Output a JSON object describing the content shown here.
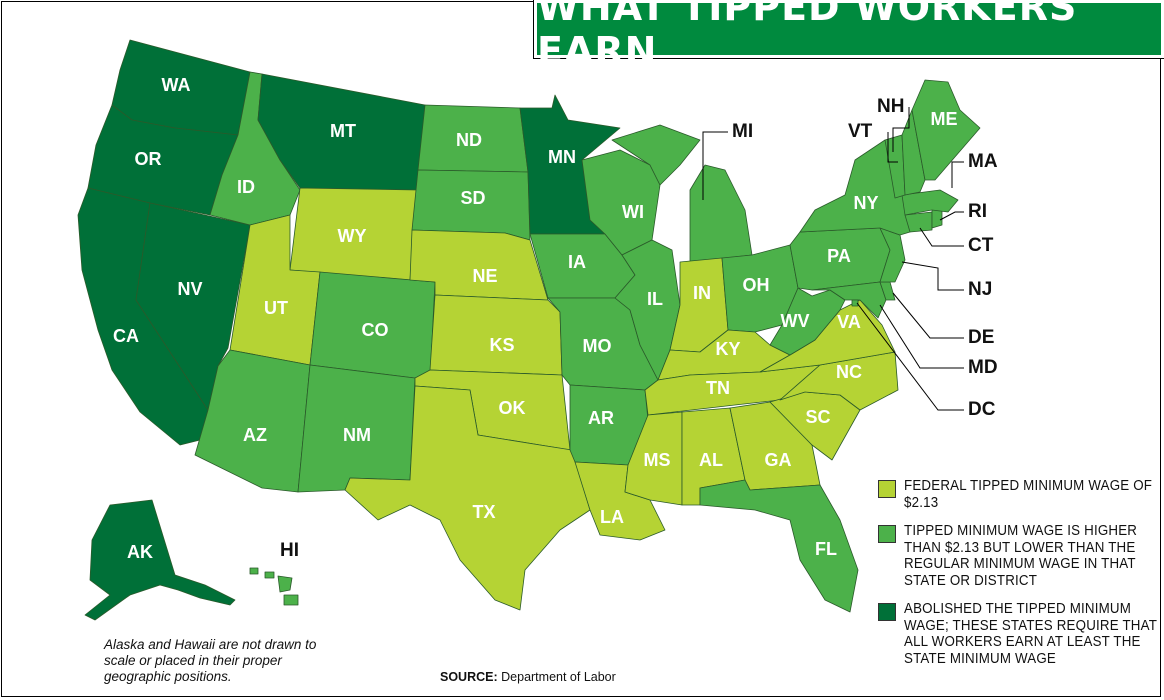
{
  "title": "WHAT TIPPED WORKERS EARN",
  "colors": {
    "federal_2_13": "#b5d334",
    "higher_than_2_13": "#4cb14a",
    "abolished": "#007038",
    "banner": "#008a3e"
  },
  "legend": [
    {
      "category": "federal_2_13",
      "text": "FEDERAL TIPPED MINIMUM WAGE OF $2.13"
    },
    {
      "category": "higher_than_2_13",
      "text": "TIPPED MINIMUM WAGE IS HIGHER THAN $2.13 BUT LOWER THAN THE REGULAR MINIMUM WAGE IN THAT STATE OR DISTRICT"
    },
    {
      "category": "abolished",
      "text": "ABOLISHED THE TIPPED MINIMUM WAGE; THESE STATES REQUIRE THAT ALL WORKERS EARN AT LEAST THE STATE MINIMUM WAGE"
    }
  ],
  "states": {
    "WA": "abolished",
    "OR": "abolished",
    "CA": "abolished",
    "NV": "abolished",
    "MT": "abolished",
    "MN": "abolished",
    "AK": "abolished",
    "ID": "higher_than_2_13",
    "ND": "higher_than_2_13",
    "SD": "higher_than_2_13",
    "CO": "higher_than_2_13",
    "AZ": "higher_than_2_13",
    "NM": "higher_than_2_13",
    "IA": "higher_than_2_13",
    "MO": "higher_than_2_13",
    "AR": "higher_than_2_13",
    "WI": "higher_than_2_13",
    "IL": "higher_than_2_13",
    "MI": "higher_than_2_13",
    "OH": "higher_than_2_13",
    "WV": "higher_than_2_13",
    "PA": "higher_than_2_13",
    "NY": "higher_than_2_13",
    "VT": "higher_than_2_13",
    "NH": "higher_than_2_13",
    "ME": "higher_than_2_13",
    "MA": "higher_than_2_13",
    "RI": "higher_than_2_13",
    "CT": "higher_than_2_13",
    "NJ": "higher_than_2_13",
    "DE": "higher_than_2_13",
    "MD": "higher_than_2_13",
    "DC": "higher_than_2_13",
    "FL": "higher_than_2_13",
    "HI": "higher_than_2_13",
    "WY": "federal_2_13",
    "UT": "federal_2_13",
    "NE": "federal_2_13",
    "KS": "federal_2_13",
    "OK": "federal_2_13",
    "TX": "federal_2_13",
    "LA": "federal_2_13",
    "MS": "federal_2_13",
    "AL": "federal_2_13",
    "GA": "federal_2_13",
    "SC": "federal_2_13",
    "NC": "federal_2_13",
    "TN": "federal_2_13",
    "KY": "federal_2_13",
    "VA": "federal_2_13",
    "IN": "federal_2_13"
  },
  "note": "Alaska and Hawaii are not drawn to scale or placed in their proper geographic positions.",
  "source_label": "SOURCE:",
  "source_text": "Department of Labor"
}
